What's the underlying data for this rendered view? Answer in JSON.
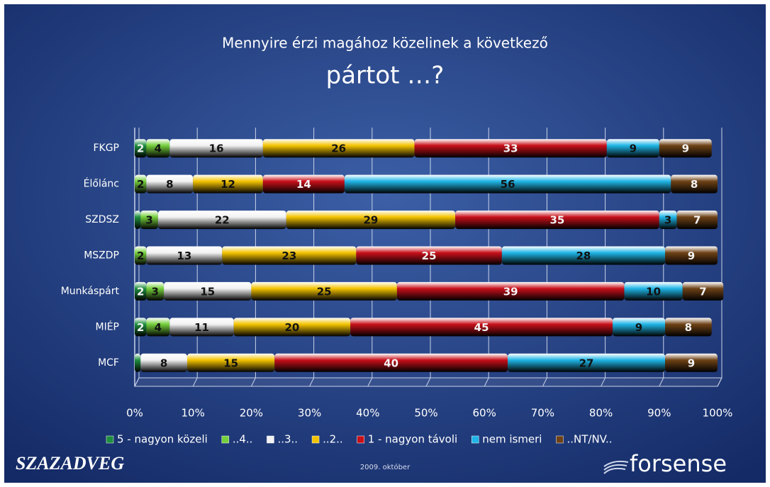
{
  "chart_data": {
    "type": "stacked-barh",
    "title": "Mennyire érzi magához közelinek a következő",
    "subtitle": "pártot …?",
    "categories": [
      "FKGP",
      "Élőlánc",
      "SZDSZ",
      "MSZDP",
      "Munkáspárt",
      "MIÉP",
      "MCF"
    ],
    "series": [
      {
        "name": "5 - nagyon közeli",
        "color": "#1f8f3f",
        "values": [
          2,
          0,
          1,
          0,
          2,
          2,
          1
        ]
      },
      {
        "name": "..4..",
        "color": "#74cf3c",
        "values": [
          4,
          2,
          3,
          2,
          3,
          4,
          0
        ]
      },
      {
        "name": "..3..",
        "color": "#f2f2f2",
        "values": [
          16,
          8,
          22,
          13,
          15,
          11,
          8
        ]
      },
      {
        "name": "..2..",
        "color": "#f4c300",
        "values": [
          26,
          12,
          29,
          23,
          25,
          20,
          15
        ]
      },
      {
        "name": "1 - nagyon távoli",
        "color": "#c8101a",
        "values": [
          33,
          14,
          35,
          25,
          39,
          45,
          40
        ]
      },
      {
        "name": "nem ismeri",
        "color": "#1fb5e6",
        "values": [
          9,
          56,
          3,
          28,
          10,
          9,
          27
        ]
      },
      {
        "name": "..NT/NV..",
        "color": "#6e4216",
        "values": [
          9,
          8,
          7,
          9,
          7,
          8,
          9
        ]
      }
    ],
    "xlim": [
      0,
      100
    ],
    "xticks": [
      {
        "value": 0,
        "label": "0%"
      },
      {
        "value": 10,
        "label": "10%"
      },
      {
        "value": 20,
        "label": "20%"
      },
      {
        "value": 30,
        "label": "30%"
      },
      {
        "value": 40,
        "label": "40%"
      },
      {
        "value": 50,
        "label": "50%"
      },
      {
        "value": 60,
        "label": "60%"
      },
      {
        "value": 70,
        "label": "70%"
      },
      {
        "value": 80,
        "label": "80%"
      },
      {
        "value": 90,
        "label": "90%"
      },
      {
        "value": 100,
        "label": "100%"
      }
    ],
    "grid": true,
    "legend": "bottom"
  },
  "footer": {
    "left_logo": "SZAZADVEG",
    "date": "2009. október",
    "right_logo": "forsense"
  }
}
